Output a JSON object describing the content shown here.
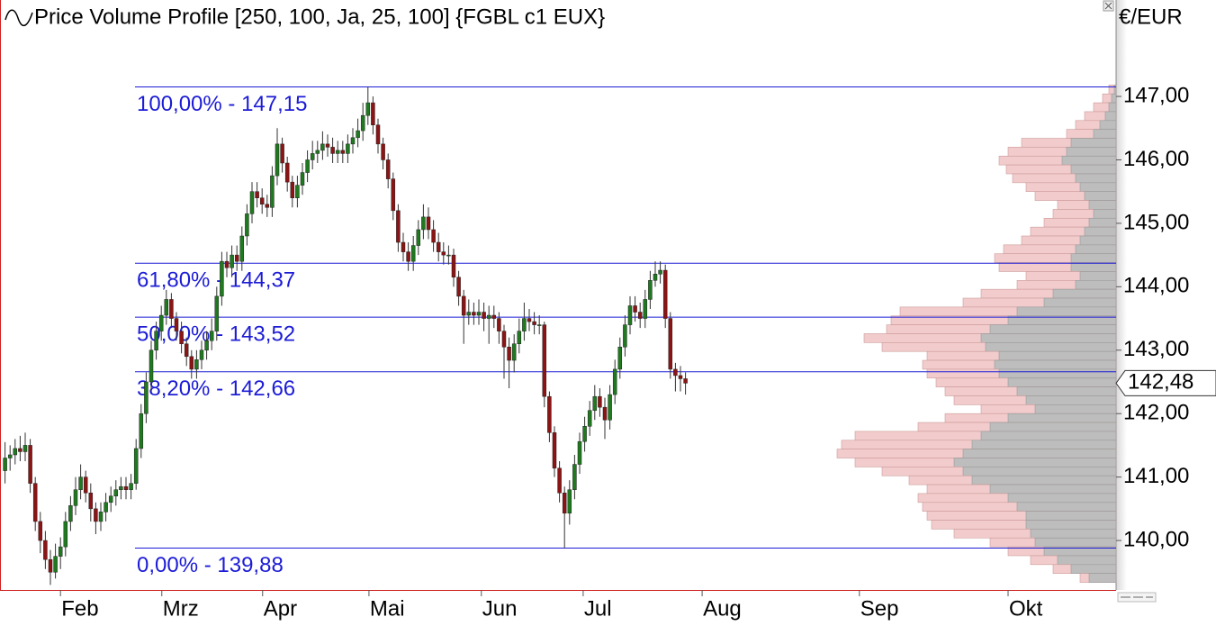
{
  "chart_data": {
    "type": "candlestick",
    "title": "Price Volume Profile [250, 100, Ja, 25, 100] {FGBL c1 EUX}",
    "y_axis_label": "€/EUR",
    "up_color": "#1f7a1f",
    "down_color": "#8c1414",
    "xlim": [
      0,
      221.43
    ],
    "ylim": [
      139.22,
      148.52
    ],
    "yticks": [
      {
        "value": 140,
        "label": "140,00"
      },
      {
        "value": 141,
        "label": "141,00"
      },
      {
        "value": 142,
        "label": "142,00"
      },
      {
        "value": 143,
        "label": "143,00"
      },
      {
        "value": 144,
        "label": "144,00"
      },
      {
        "value": 145,
        "label": "145,00"
      },
      {
        "value": 146,
        "label": "146,00"
      },
      {
        "value": 147,
        "label": "147,00"
      }
    ],
    "xticks": [
      {
        "value": 12,
        "label": "Feb"
      },
      {
        "value": 32.1,
        "label": "Mrz"
      },
      {
        "value": 52.1,
        "label": "Apr"
      },
      {
        "value": 73.2,
        "label": "Mai"
      },
      {
        "value": 95.5,
        "label": "Jun"
      },
      {
        "value": 115.7,
        "label": "Jul"
      },
      {
        "value": 139.3,
        "label": "Aug"
      },
      {
        "value": 170.5,
        "label": "Sep"
      },
      {
        "value": 200,
        "label": "Okt"
      }
    ],
    "x": [
      1,
      2,
      3,
      4,
      5,
      6,
      7,
      8,
      9,
      10,
      11,
      12,
      13,
      14,
      15,
      16,
      17,
      18,
      19,
      20,
      21,
      22,
      23,
      24,
      25,
      26,
      27,
      28,
      29,
      30,
      31,
      32,
      33,
      34,
      35,
      36,
      37,
      38,
      39,
      40,
      41,
      42,
      43,
      44,
      45,
      46,
      47,
      48,
      49,
      50,
      51,
      52,
      53,
      54,
      55,
      56,
      57,
      58,
      59,
      60,
      61,
      62,
      63,
      64,
      65,
      66,
      67,
      68,
      69,
      70,
      71,
      72,
      73,
      74,
      75,
      76,
      77,
      78,
      79,
      80,
      81,
      82,
      83,
      84,
      85,
      86,
      87,
      88,
      89,
      90,
      91,
      92,
      93,
      94,
      95,
      96,
      97,
      98,
      99,
      100,
      101,
      102,
      103,
      104,
      105,
      106,
      107,
      108,
      109,
      110,
      111,
      112,
      113,
      114,
      115,
      116,
      117,
      118,
      119,
      120,
      121,
      122,
      123,
      124,
      125,
      126,
      127,
      128,
      129,
      130,
      131,
      132,
      133,
      134,
      135,
      136
    ],
    "open": [
      141.1,
      141.3,
      141.35,
      141.45,
      141.4,
      141.5,
      140.9,
      140.3,
      140.0,
      139.7,
      139.5,
      139.75,
      139.9,
      140.3,
      140.55,
      140.8,
      141.0,
      140.75,
      140.5,
      140.3,
      140.45,
      140.6,
      140.7,
      140.8,
      140.85,
      140.8,
      140.9,
      141.45,
      142.0,
      142.5,
      143.0,
      143.3,
      143.55,
      143.8,
      143.5,
      143.3,
      143.1,
      142.9,
      142.7,
      142.85,
      143.0,
      143.15,
      143.3,
      143.85,
      144.4,
      144.3,
      144.5,
      144.4,
      144.8,
      145.15,
      145.5,
      145.4,
      145.3,
      145.25,
      145.75,
      146.25,
      145.95,
      145.65,
      145.4,
      145.6,
      145.8,
      146.0,
      146.1,
      146.15,
      146.25,
      146.2,
      146.1,
      146.15,
      146.1,
      146.25,
      146.35,
      146.46,
      146.7,
      146.9,
      146.55,
      146.25,
      146.0,
      145.7,
      145.2,
      144.7,
      144.55,
      144.4,
      144.65,
      144.9,
      145.1,
      144.9,
      144.7,
      144.55,
      144.5,
      144.5,
      144.15,
      143.85,
      143.55,
      143.6,
      143.55,
      143.6,
      143.5,
      143.55,
      143.5,
      143.3,
      143.05,
      142.84,
      143.1,
      143.3,
      143.5,
      143.45,
      143.4,
      143.4,
      142.27,
      141.7,
      141.14,
      140.75,
      140.43,
      140.8,
      141.2,
      141.56,
      141.8,
      142.05,
      142.27,
      142.1,
      141.9,
      142.3,
      142.7,
      143.05,
      143.4,
      143.7,
      143.6,
      143.5,
      143.8,
      144.1,
      144.2,
      144.26,
      143.5,
      142.7,
      142.6,
      142.55
    ],
    "high": [
      141.55,
      141.5,
      141.6,
      141.65,
      141.7,
      141.6,
      141.0,
      140.45,
      140.15,
      139.85,
      139.95,
      140.05,
      140.45,
      140.7,
      141.0,
      141.2,
      141.1,
      140.9,
      140.6,
      140.6,
      140.75,
      140.85,
      140.95,
      141.0,
      141.0,
      141.05,
      141.6,
      142.15,
      142.65,
      143.15,
      143.45,
      143.7,
      143.95,
      143.9,
      143.6,
      143.45,
      143.2,
      143.0,
      143.0,
      143.15,
      143.3,
      143.5,
      144.0,
      144.55,
      144.55,
      144.65,
      144.65,
      144.95,
      145.3,
      145.65,
      145.65,
      145.55,
      145.45,
      145.9,
      146.5,
      146.35,
      146.05,
      145.75,
      145.75,
      145.95,
      146.15,
      146.3,
      146.3,
      146.45,
      146.4,
      146.35,
      146.3,
      146.3,
      146.4,
      146.5,
      146.65,
      146.9,
      147.15,
      147.0,
      146.65,
      146.35,
      146.1,
      145.8,
      145.3,
      144.85,
      144.7,
      144.8,
      145.05,
      145.3,
      145.25,
      145.05,
      144.85,
      144.7,
      144.65,
      144.6,
      144.25,
      143.95,
      143.8,
      143.75,
      143.8,
      143.75,
      143.7,
      143.7,
      143.6,
      143.4,
      143.2,
      143.25,
      143.5,
      143.75,
      143.65,
      143.6,
      143.55,
      143.45,
      142.35,
      141.8,
      141.25,
      140.85,
      140.95,
      141.35,
      141.7,
      141.95,
      142.2,
      142.45,
      142.4,
      142.25,
      142.45,
      142.85,
      143.2,
      143.55,
      143.85,
      143.85,
      143.75,
      143.95,
      144.25,
      144.4,
      144.4,
      144.35,
      143.6,
      142.8,
      142.75,
      142.65
    ],
    "low": [
      140.9,
      141.1,
      141.2,
      141.25,
      141.25,
      140.75,
      140.15,
      139.8,
      139.55,
      139.3,
      139.4,
      139.55,
      139.75,
      140.15,
      140.4,
      140.65,
      140.6,
      140.3,
      140.1,
      140.15,
      140.3,
      140.45,
      140.55,
      140.65,
      140.65,
      140.65,
      140.8,
      141.3,
      141.85,
      142.35,
      142.85,
      143.15,
      143.4,
      143.35,
      143.15,
      142.95,
      142.75,
      142.55,
      142.55,
      142.7,
      142.85,
      143.0,
      143.15,
      143.7,
      144.15,
      144.15,
      144.25,
      144.25,
      144.65,
      145.0,
      145.25,
      145.15,
      145.1,
      145.1,
      145.6,
      145.8,
      145.5,
      145.25,
      145.25,
      145.45,
      145.65,
      145.85,
      145.95,
      146.0,
      146.05,
      145.95,
      145.95,
      145.95,
      145.95,
      146.1,
      146.2,
      146.3,
      146.55,
      146.4,
      146.1,
      145.85,
      145.55,
      145.05,
      144.55,
      144.4,
      144.25,
      144.25,
      144.5,
      144.75,
      144.75,
      144.55,
      144.4,
      144.35,
      144.35,
      144.0,
      143.7,
      143.1,
      143.4,
      143.4,
      143.4,
      143.3,
      143.1,
      143.35,
      143.1,
      142.55,
      142.4,
      142.65,
      142.95,
      143.15,
      143.3,
      143.25,
      143.25,
      142.1,
      141.55,
      141.0,
      140.6,
      139.88,
      140.25,
      140.65,
      141.05,
      141.4,
      141.65,
      141.9,
      141.95,
      141.6,
      141.75,
      142.15,
      142.55,
      142.9,
      143.25,
      143.45,
      143.35,
      143.35,
      143.65,
      144.0,
      144.05,
      143.35,
      142.55,
      142.35,
      142.35,
      142.3
    ],
    "close": [
      141.3,
      141.35,
      141.45,
      141.4,
      141.5,
      140.9,
      140.3,
      140.0,
      139.7,
      139.5,
      139.75,
      139.9,
      140.3,
      140.55,
      140.8,
      141.0,
      140.75,
      140.5,
      140.3,
      140.45,
      140.6,
      140.7,
      140.8,
      140.85,
      140.8,
      140.9,
      141.45,
      142.0,
      142.5,
      143.0,
      143.3,
      143.55,
      143.8,
      143.5,
      143.3,
      143.1,
      142.9,
      142.7,
      142.85,
      143.0,
      143.15,
      143.3,
      143.85,
      144.4,
      144.3,
      144.5,
      144.4,
      144.8,
      145.15,
      145.5,
      145.4,
      145.3,
      145.25,
      145.75,
      146.25,
      145.95,
      145.65,
      145.4,
      145.6,
      145.8,
      146.0,
      146.1,
      146.15,
      146.25,
      146.2,
      146.1,
      146.15,
      146.1,
      146.25,
      146.35,
      146.46,
      146.7,
      146.9,
      146.55,
      146.25,
      146.0,
      145.7,
      145.2,
      144.7,
      144.55,
      144.4,
      144.65,
      144.9,
      145.1,
      144.9,
      144.7,
      144.55,
      144.5,
      144.5,
      144.15,
      143.85,
      143.55,
      143.6,
      143.55,
      143.6,
      143.5,
      143.55,
      143.5,
      143.3,
      143.05,
      142.84,
      143.1,
      143.3,
      143.5,
      143.45,
      143.4,
      143.4,
      142.27,
      141.7,
      141.14,
      140.75,
      140.43,
      140.8,
      141.2,
      141.56,
      141.8,
      142.05,
      142.27,
      142.1,
      141.9,
      142.3,
      142.7,
      143.05,
      143.4,
      143.7,
      143.6,
      143.5,
      143.8,
      144.1,
      144.2,
      144.26,
      143.5,
      142.7,
      142.6,
      142.55,
      142.48
    ],
    "levels": [
      {
        "value": 147.15,
        "label": "100,00% - 147,15"
      },
      {
        "value": 144.37,
        "label": "61,80% - 144,37"
      },
      {
        "value": 143.52,
        "label": "50,00% - 143,52"
      },
      {
        "value": 142.66,
        "label": "38,20% - 142,66"
      },
      {
        "value": 139.88,
        "label": "0,00% - 139,88"
      }
    ],
    "level_color": "#1c1cd6",
    "last_price": {
      "value": 142.48,
      "label": "142,48"
    },
    "profile": {
      "total_color": "#f2cccc",
      "inner_color": "#bdbdbd",
      "levels": [
        147.11,
        146.97,
        146.83,
        146.69,
        146.55,
        146.41,
        146.27,
        146.13,
        145.99,
        145.85,
        145.71,
        145.57,
        145.43,
        145.29,
        145.15,
        145.01,
        144.87,
        144.73,
        144.59,
        144.45,
        144.31,
        144.17,
        144.03,
        143.89,
        143.75,
        143.61,
        143.47,
        143.33,
        143.19,
        143.05,
        142.91,
        142.77,
        142.63,
        142.49,
        142.35,
        142.21,
        142.07,
        141.93,
        141.79,
        141.65,
        141.51,
        141.37,
        141.23,
        141.09,
        140.95,
        140.81,
        140.67,
        140.53,
        140.39,
        140.25,
        140.11,
        139.97,
        139.83,
        139.69,
        139.55,
        139.41
      ],
      "total": [
        8,
        15,
        25,
        35,
        45,
        55,
        105,
        120,
        130,
        122,
        115,
        100,
        90,
        65,
        70,
        80,
        95,
        105,
        125,
        135,
        130,
        100,
        110,
        150,
        170,
        240,
        250,
        255,
        280,
        260,
        210,
        215,
        210,
        200,
        190,
        180,
        150,
        190,
        220,
        290,
        305,
        310,
        290,
        260,
        230,
        210,
        220,
        215,
        210,
        205,
        180,
        140,
        120,
        95,
        70,
        40
      ],
      "inner": [
        2,
        5,
        8,
        12,
        18,
        25,
        50,
        55,
        60,
        50,
        45,
        40,
        35,
        30,
        25,
        30,
        35,
        40,
        45,
        50,
        50,
        40,
        45,
        70,
        80,
        110,
        120,
        140,
        150,
        145,
        130,
        135,
        130,
        120,
        110,
        100,
        90,
        120,
        140,
        150,
        160,
        170,
        180,
        170,
        160,
        140,
        120,
        110,
        100,
        100,
        95,
        90,
        80,
        65,
        50,
        30
      ]
    }
  }
}
